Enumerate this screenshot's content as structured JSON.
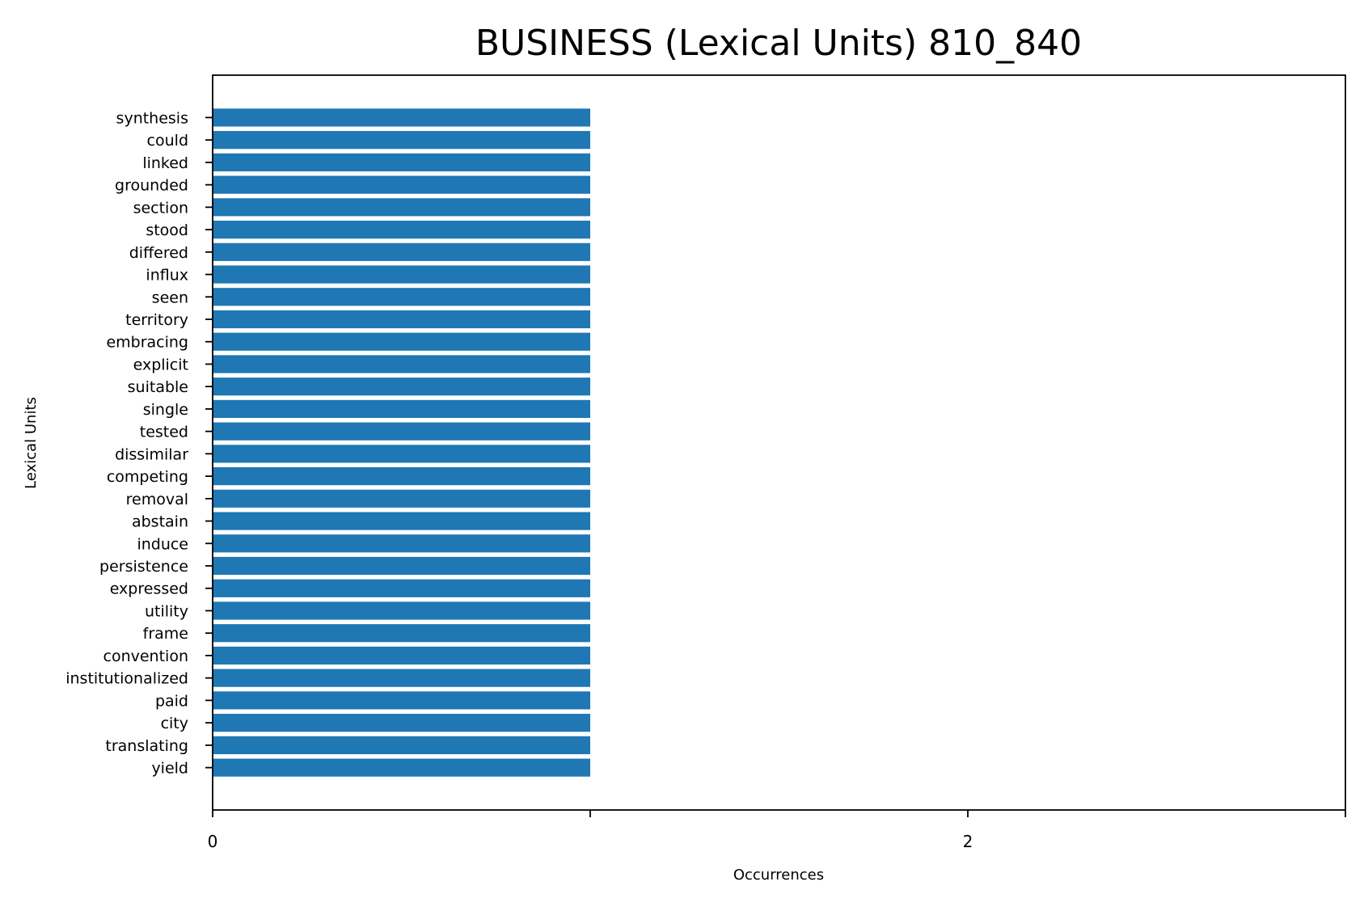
{
  "chart_data": {
    "type": "bar",
    "orientation": "horizontal",
    "title": "BUSINESS (Lexical Units) 810_840",
    "xlabel": "Occurrences",
    "ylabel": "Lexical Units",
    "xlim": [
      0,
      3
    ],
    "xticks": [
      0,
      1,
      2,
      3
    ],
    "xtick_labels": [
      "0",
      "",
      "2",
      ""
    ],
    "grid": false,
    "legend": "none",
    "bar_color": "#1f77b4",
    "categories": [
      "synthesis",
      "could",
      "linked",
      "grounded",
      "section",
      "stood",
      "differed",
      "influx",
      "seen",
      "territory",
      "embracing",
      "explicit",
      "suitable",
      "single",
      "tested",
      "dissimilar",
      "competing",
      "removal",
      "abstain",
      "induce",
      "persistence",
      "expressed",
      "utility",
      "frame",
      "convention",
      "institutionalized",
      "paid",
      "city",
      "translating",
      "yield"
    ],
    "values": [
      1,
      1,
      1,
      1,
      1,
      1,
      1,
      1,
      1,
      1,
      1,
      1,
      1,
      1,
      1,
      1,
      1,
      1,
      1,
      1,
      1,
      1,
      1,
      1,
      1,
      1,
      1,
      1,
      1,
      1
    ]
  }
}
